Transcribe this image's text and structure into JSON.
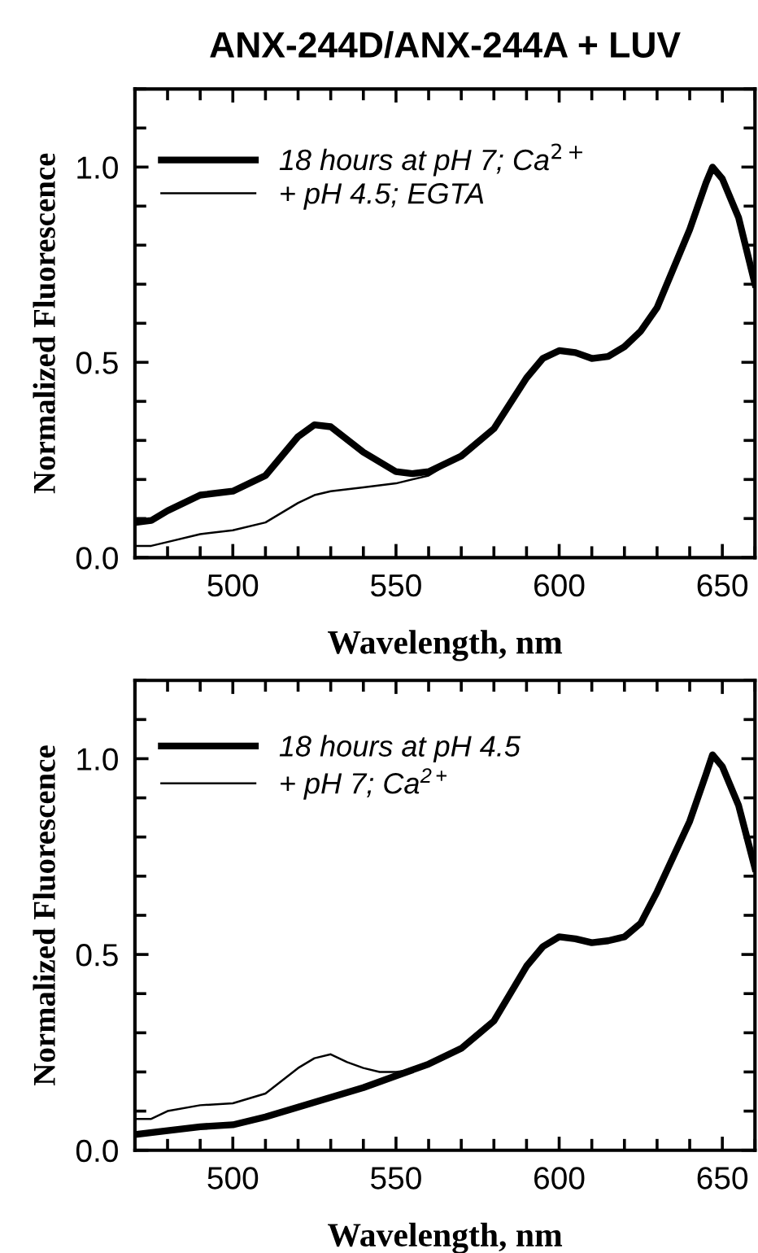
{
  "chart_data": [
    {
      "type": "line",
      "title": "ANX-244D/ANX-244A + LUV",
      "xlabel": "Wavelength, nm",
      "ylabel": "Normalized Fluorescence",
      "legend": "top left",
      "grid": false,
      "xlim": [
        470,
        660
      ],
      "ylim": [
        0,
        1.2
      ],
      "xticks": [
        {
          "value": 470,
          "label": null
        },
        {
          "value": 480,
          "label": null
        },
        {
          "value": 490,
          "label": null
        },
        500,
        {
          "value": 510,
          "label": null
        },
        {
          "value": 520,
          "label": null
        },
        {
          "value": 530,
          "label": null
        },
        {
          "value": 540,
          "label": null
        },
        550,
        {
          "value": 560,
          "label": null
        },
        {
          "value": 570,
          "label": null
        },
        {
          "value": 580,
          "label": null
        },
        {
          "value": 590,
          "label": null
        },
        600,
        {
          "value": 610,
          "label": null
        },
        {
          "value": 620,
          "label": null
        },
        {
          "value": 630,
          "label": null
        },
        {
          "value": 640,
          "label": null
        },
        650,
        {
          "value": 660,
          "label": null
        }
      ],
      "yticks": [
        {
          "value": 0,
          "label": "0.0"
        },
        {
          "value": 0.1,
          "label": null
        },
        {
          "value": 0.2,
          "label": null
        },
        {
          "value": 0.3,
          "label": null
        },
        {
          "value": 0.4,
          "label": null
        },
        {
          "value": 0.5,
          "label": "0.5"
        },
        {
          "value": 0.6,
          "label": null
        },
        {
          "value": 0.7,
          "label": null
        },
        {
          "value": 0.8,
          "label": null
        },
        {
          "value": 0.9,
          "label": null
        },
        {
          "value": 1.0,
          "label": "1.0"
        },
        {
          "value": 1.1,
          "label": null
        },
        {
          "value": 1.2,
          "label": null
        }
      ],
      "series": [
        {
          "name": "18 hours at pH 7; Ca$^{2+}$",
          "color": "#000000",
          "x": [
            470,
            475,
            480,
            490,
            500,
            510,
            520,
            525,
            530,
            540,
            550,
            555,
            560,
            570,
            580,
            590,
            595,
            600,
            605,
            610,
            615,
            620,
            625,
            630,
            635,
            640,
            645,
            647,
            650,
            655,
            660
          ],
          "values": [
            0.09,
            0.095,
            0.12,
            0.16,
            0.17,
            0.21,
            0.31,
            0.34,
            0.335,
            0.27,
            0.22,
            0.215,
            0.22,
            0.26,
            0.33,
            0.46,
            0.51,
            0.53,
            0.525,
            0.51,
            0.515,
            0.54,
            0.58,
            0.64,
            0.74,
            0.84,
            0.96,
            1.0,
            0.97,
            0.87,
            0.7
          ]
        },
        {
          "name": "+ pH 4.5; EGTA",
          "color": "#000000",
          "x": [
            470,
            475,
            480,
            490,
            500,
            510,
            520,
            525,
            530,
            540,
            550,
            560,
            570,
            580,
            590,
            595,
            600,
            605,
            610,
            615,
            620,
            625,
            630,
            635,
            640,
            645,
            647,
            650,
            655,
            660
          ],
          "values": [
            0.03,
            0.03,
            0.04,
            0.06,
            0.07,
            0.09,
            0.14,
            0.16,
            0.17,
            0.18,
            0.19,
            0.21,
            0.26,
            0.33,
            0.46,
            0.51,
            0.53,
            0.525,
            0.51,
            0.515,
            0.54,
            0.58,
            0.64,
            0.74,
            0.84,
            0.96,
            1.0,
            0.97,
            0.87,
            0.7
          ]
        }
      ]
    },
    {
      "type": "line",
      "xlabel": "Wavelength, nm",
      "ylabel": "Normalized Fluorescence",
      "legend": "top left",
      "grid": false,
      "xlim": [
        470,
        660
      ],
      "ylim": [
        0,
        1.2
      ],
      "xticks": [
        {
          "value": 470,
          "label": null
        },
        {
          "value": 480,
          "label": null
        },
        {
          "value": 490,
          "label": null
        },
        500,
        {
          "value": 510,
          "label": null
        },
        {
          "value": 520,
          "label": null
        },
        {
          "value": 530,
          "label": null
        },
        {
          "value": 540,
          "label": null
        },
        550,
        {
          "value": 560,
          "label": null
        },
        {
          "value": 570,
          "label": null
        },
        {
          "value": 580,
          "label": null
        },
        {
          "value": 590,
          "label": null
        },
        600,
        {
          "value": 610,
          "label": null
        },
        {
          "value": 620,
          "label": null
        },
        {
          "value": 630,
          "label": null
        },
        {
          "value": 640,
          "label": null
        },
        650,
        {
          "value": 660,
          "label": null
        }
      ],
      "yticks": [
        {
          "value": 0,
          "label": "0.0"
        },
        {
          "value": 0.1,
          "label": null
        },
        {
          "value": 0.2,
          "label": null
        },
        {
          "value": 0.3,
          "label": null
        },
        {
          "value": 0.4,
          "label": null
        },
        {
          "value": 0.5,
          "label": "0.5"
        },
        {
          "value": 0.6,
          "label": null
        },
        {
          "value": 0.7,
          "label": null
        },
        {
          "value": 0.8,
          "label": null
        },
        {
          "value": 0.9,
          "label": null
        },
        {
          "value": 1.0,
          "label": "1.0"
        },
        {
          "value": 1.1,
          "label": null
        },
        {
          "value": 1.2,
          "label": null
        }
      ],
      "series": [
        {
          "name": "18 hours at pH 4.5",
          "color": "#000000",
          "x": [
            470,
            480,
            490,
            500,
            510,
            520,
            530,
            540,
            550,
            560,
            570,
            580,
            590,
            595,
            600,
            605,
            610,
            615,
            620,
            625,
            630,
            635,
            640,
            645,
            647,
            650,
            655,
            660
          ],
          "values": [
            0.04,
            0.05,
            0.06,
            0.065,
            0.085,
            0.11,
            0.135,
            0.16,
            0.19,
            0.22,
            0.26,
            0.33,
            0.47,
            0.52,
            0.545,
            0.54,
            0.53,
            0.535,
            0.545,
            0.58,
            0.66,
            0.75,
            0.84,
            0.96,
            1.01,
            0.98,
            0.88,
            0.72
          ]
        },
        {
          "name": "+ pH 7; Ca$^{2+}$",
          "color": "#000000",
          "x": [
            470,
            475,
            480,
            490,
            500,
            510,
            520,
            525,
            530,
            535,
            540,
            545,
            550,
            555,
            560,
            570,
            580,
            590,
            595,
            600,
            605,
            610,
            615,
            620,
            625,
            630,
            635,
            640,
            645,
            647,
            650,
            655,
            660
          ],
          "values": [
            0.08,
            0.08,
            0.1,
            0.115,
            0.12,
            0.145,
            0.21,
            0.235,
            0.245,
            0.225,
            0.21,
            0.2,
            0.2,
            0.205,
            0.22,
            0.26,
            0.33,
            0.47,
            0.52,
            0.545,
            0.54,
            0.53,
            0.535,
            0.545,
            0.58,
            0.66,
            0.75,
            0.84,
            0.96,
            1.01,
            0.98,
            0.88,
            0.72
          ]
        }
      ]
    }
  ]
}
